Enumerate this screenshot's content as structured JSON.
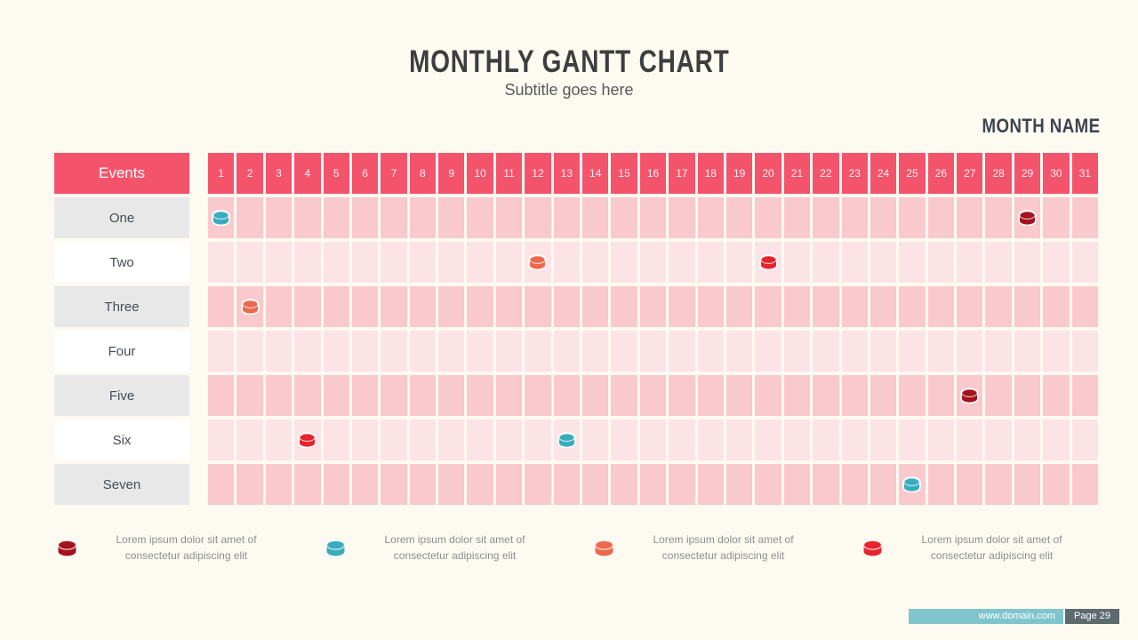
{
  "slide": {
    "title": "MONTHLY GANTT CHART",
    "subtitle": "Subtitle goes here",
    "month_label": "MONTH NAME"
  },
  "gantt": {
    "events_header": "Events",
    "events": [
      "One",
      "Two",
      "Three",
      "Four",
      "Five",
      "Six",
      "Seven"
    ],
    "day_labels": [
      1,
      2,
      3,
      4,
      5,
      6,
      7,
      8,
      9,
      10,
      11,
      12,
      13,
      14,
      15,
      16,
      17,
      18,
      19,
      20,
      21,
      22,
      23,
      24,
      25,
      26,
      27,
      28,
      29,
      30,
      31
    ]
  },
  "chart_data": {
    "type": "gantt",
    "title": "MONTHLY GANTT CHART",
    "subtitle": "Subtitle goes here",
    "x_axis": {
      "label": "MONTH NAME",
      "range": [
        1,
        31
      ]
    },
    "categories": [
      "One",
      "Two",
      "Three",
      "Four",
      "Five",
      "Six",
      "Seven"
    ],
    "markers": [
      {
        "event": "One",
        "day": 1,
        "series": "teal"
      },
      {
        "event": "One",
        "day": 29,
        "series": "dark-red"
      },
      {
        "event": "Two",
        "day": 12,
        "series": "orange"
      },
      {
        "event": "Two",
        "day": 20,
        "series": "red"
      },
      {
        "event": "Three",
        "day": 2,
        "series": "orange"
      },
      {
        "event": "Five",
        "day": 27,
        "series": "dark-red"
      },
      {
        "event": "Six",
        "day": 4,
        "series": "red"
      },
      {
        "event": "Six",
        "day": 13,
        "series": "teal"
      },
      {
        "event": "Seven",
        "day": 25,
        "series": "teal"
      }
    ],
    "series_colors": {
      "dark-red": "#a4121e",
      "teal": "#39acbe",
      "orange": "#ec694d",
      "red": "#e8232c"
    },
    "row_band_colors": [
      "#f9c9cd",
      "#fce3e6"
    ],
    "header_color": "#f4536c"
  },
  "legend": [
    {
      "icon": "cylinder-icon",
      "series": "dark-red",
      "color": "#a4121e",
      "line1": "Lorem ipsum dolor sit amet of",
      "line2": "consectetur adipiscing elit"
    },
    {
      "icon": "cylinder-icon",
      "series": "teal",
      "color": "#39acbe",
      "line1": "Lorem ipsum dolor sit amet of",
      "line2": "consectetur adipiscing elit"
    },
    {
      "icon": "cylinder-icon",
      "series": "orange",
      "color": "#ec694d",
      "line1": "Lorem ipsum dolor sit amet of",
      "line2": "consectetur adipiscing elit"
    },
    {
      "icon": "cylinder-icon",
      "series": "red",
      "color": "#e8232c",
      "line1": "Lorem ipsum dolor sit amet of",
      "line2": "consectetur adipiscing elit"
    }
  ],
  "footer": {
    "website": "www.domain.com",
    "page": "Page 29"
  },
  "colors": {
    "background": "#fdfaf1",
    "accent_pink": "#f4536c",
    "row_dark_pink": "#f9c9cd",
    "row_light_pink": "#fce3e6",
    "label_gray": "#e8e8e8",
    "footer_teal": "#80c5cc",
    "footer_slate": "#5d6a6e",
    "title_text": "#3e3e3e",
    "legend_text": "#8f8f8f"
  }
}
